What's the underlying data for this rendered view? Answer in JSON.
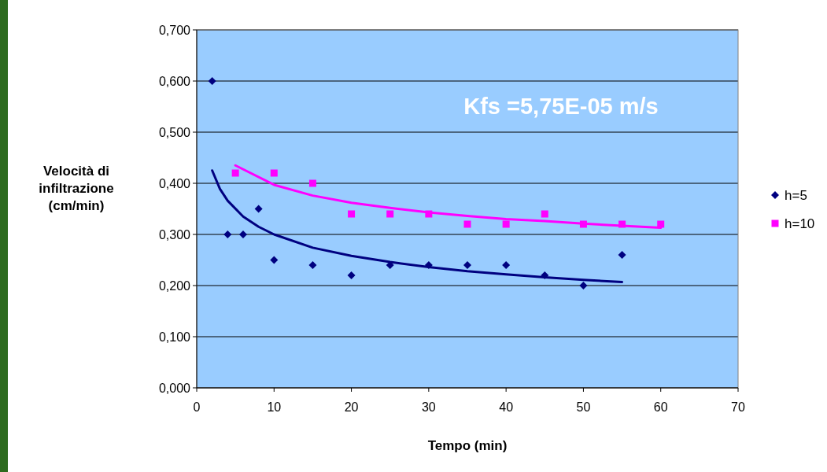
{
  "chart_data": {
    "type": "scatter",
    "xlabel": "Tempo (min)",
    "ylabel": "Velocità di infiltrazione (cm/min)",
    "annotations": [
      "Kfs =5,75E-05 m/s"
    ],
    "xlim": [
      0,
      70
    ],
    "xticks": [
      0,
      10,
      20,
      30,
      40,
      50,
      60,
      70
    ],
    "ylim": [
      0,
      0.7
    ],
    "yticks": [
      {
        "value": 0,
        "label": "0,000"
      },
      {
        "value": 0.1,
        "label": "0,100"
      },
      {
        "value": 0.2,
        "label": "0,200"
      },
      {
        "value": 0.3,
        "label": "0,300"
      },
      {
        "value": 0.4,
        "label": "0,400"
      },
      {
        "value": 0.5,
        "label": "0,500"
      },
      {
        "value": 0.6,
        "label": "0,600"
      },
      {
        "value": 0.7,
        "label": "0,700"
      }
    ],
    "grid": "y",
    "legend": "right",
    "series": [
      {
        "name": "h=5",
        "color": "#000080",
        "marker": "diamond",
        "x": [
          2,
          4,
          6,
          8,
          10,
          15,
          20,
          25,
          30,
          35,
          40,
          45,
          50,
          55
        ],
        "values": [
          0.6,
          0.3,
          0.3,
          0.35,
          0.25,
          0.24,
          0.22,
          0.24,
          0.24,
          0.24,
          0.24,
          0.22,
          0.2,
          0.26
        ]
      },
      {
        "name": "h=10",
        "color": "#ff00ff",
        "marker": "square",
        "x": [
          5,
          10,
          15,
          20,
          25,
          30,
          35,
          40,
          45,
          50,
          55,
          60
        ],
        "values": [
          0.42,
          0.42,
          0.4,
          0.34,
          0.34,
          0.34,
          0.32,
          0.32,
          0.34,
          0.32,
          0.32,
          0.32
        ]
      },
      {
        "type": "line",
        "color": "#000080",
        "marker": "none",
        "x": [
          2,
          3,
          4,
          6,
          8,
          10,
          15,
          20,
          25,
          30,
          35,
          40,
          45,
          50,
          55
        ],
        "values": [
          0.425,
          0.389,
          0.366,
          0.335,
          0.315,
          0.3,
          0.274,
          0.258,
          0.246,
          0.236,
          0.228,
          0.222,
          0.216,
          0.211,
          0.207
        ]
      },
      {
        "type": "line",
        "color": "#ff00ff",
        "marker": "none",
        "x": [
          5,
          10,
          15,
          20,
          25,
          30,
          35,
          40,
          45,
          50,
          55,
          60
        ],
        "values": [
          0.435,
          0.397,
          0.376,
          0.362,
          0.352,
          0.343,
          0.336,
          0.33,
          0.326,
          0.321,
          0.317,
          0.313
        ]
      }
    ]
  }
}
